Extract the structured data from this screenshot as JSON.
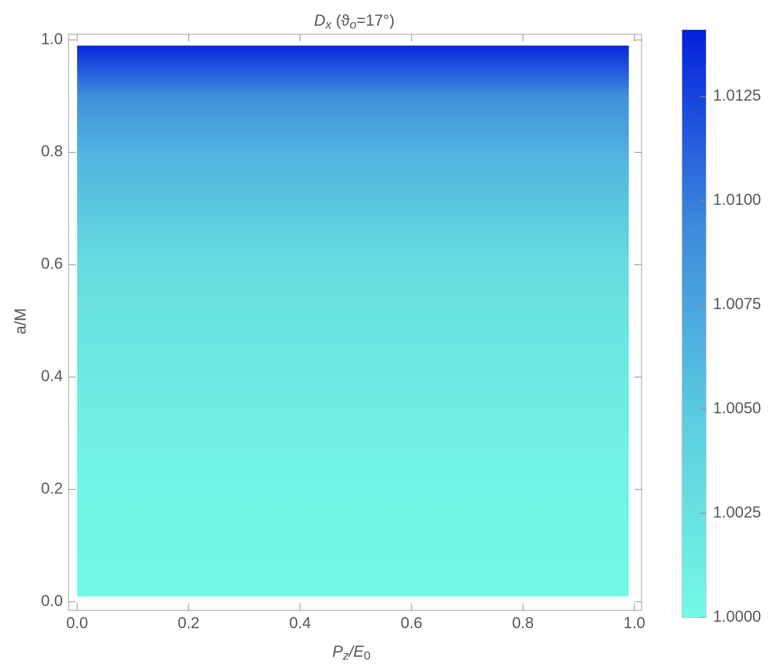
{
  "chart_data": {
    "type": "density",
    "title_parts": [
      {
        "text": "D",
        "sub": false,
        "italic": true
      },
      {
        "text": "x",
        "sub": true,
        "italic": true
      },
      {
        "text": "  (ϑ",
        "sub": false,
        "italic": false
      },
      {
        "text": "o",
        "sub": true,
        "italic": true
      },
      {
        "text": "=17°)",
        "sub": false,
        "italic": false
      }
    ],
    "xlabel_parts": [
      {
        "text": "P",
        "sub": false,
        "italic": true
      },
      {
        "text": "z",
        "sub": true,
        "italic": true
      },
      {
        "text": "/E",
        "sub": false,
        "italic": true
      },
      {
        "text": "0",
        "sub": true,
        "italic": false
      }
    ],
    "ylabel": "a/M",
    "xlim": [
      0,
      1
    ],
    "ylim": [
      0,
      1
    ],
    "data_xrange": [
      0,
      0.99
    ],
    "y": [
      0.01,
      0.2,
      0.4,
      0.6,
      0.8,
      0.9,
      0.99
    ],
    "values": [
      1.0,
      1.0005,
      1.0015,
      1.003,
      1.0065,
      1.009,
      1.0138
    ],
    "xticks": [
      {
        "value": 0,
        "label": "0.0"
      },
      {
        "value": 0.2,
        "label": "0.2"
      },
      {
        "value": 0.4,
        "label": "0.4"
      },
      {
        "value": 0.6,
        "label": "0.6"
      },
      {
        "value": 0.8,
        "label": "0.8"
      },
      {
        "value": 1,
        "label": "1.0"
      }
    ],
    "yticks": [
      {
        "value": 0,
        "label": "0.0"
      },
      {
        "value": 0.2,
        "label": "0.2"
      },
      {
        "value": 0.4,
        "label": "0.4"
      },
      {
        "value": 0.6,
        "label": "0.6"
      },
      {
        "value": 0.8,
        "label": "0.8"
      },
      {
        "value": 1,
        "label": "1.0"
      }
    ],
    "colorbar_lim": [
      1.0,
      1.0141
    ],
    "colorbar_ticks": [
      {
        "value": 1.0,
        "label": "1.0000"
      },
      {
        "value": 1.0025,
        "label": "1.0025"
      },
      {
        "value": 1.005,
        "label": "1.0050"
      },
      {
        "value": 1.0075,
        "label": "1.0075"
      },
      {
        "value": 1.01,
        "label": "1.0100"
      },
      {
        "value": 1.0125,
        "label": "1.0125"
      }
    ],
    "colorscale": [
      "#74f9e3",
      "#5ccde0",
      "#3d8adc",
      "#0420dc"
    ]
  }
}
